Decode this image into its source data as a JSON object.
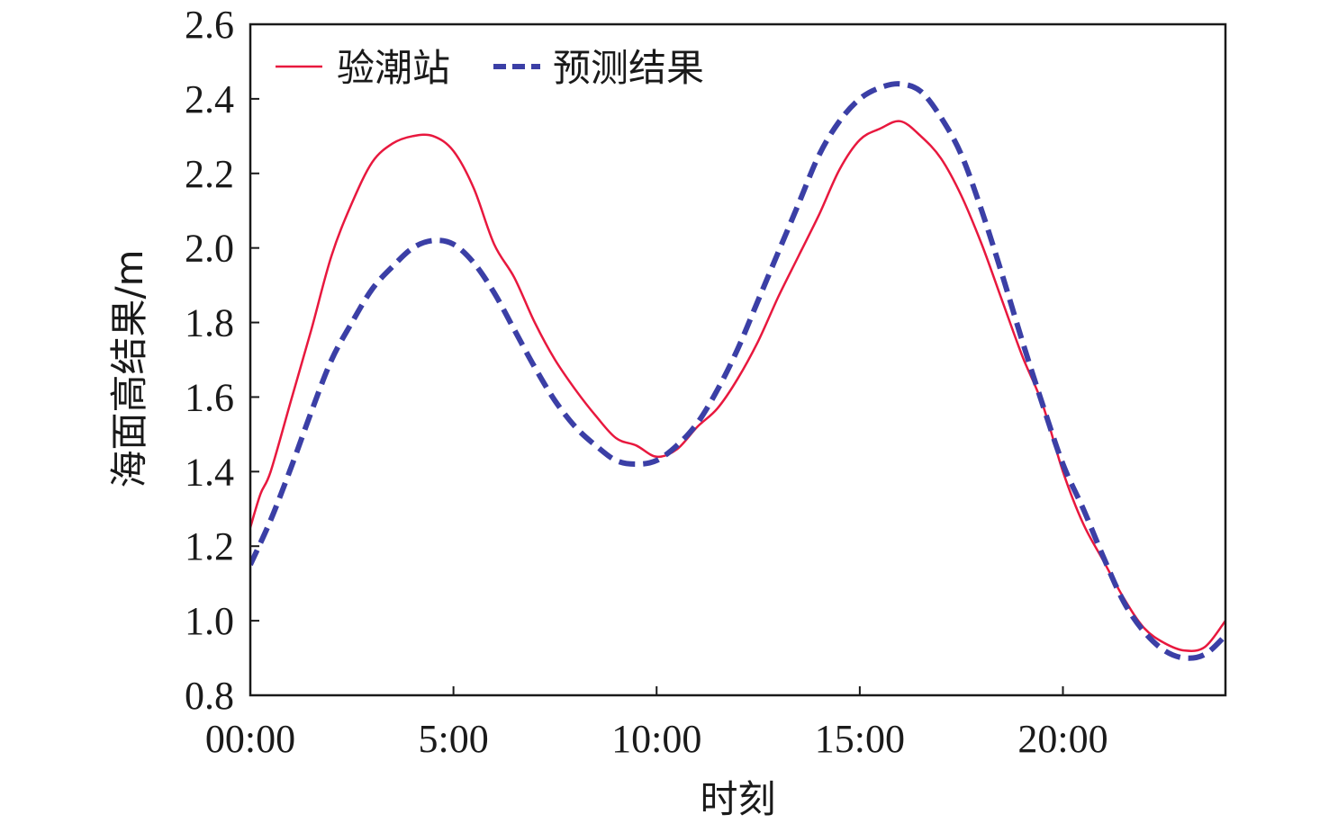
{
  "chart_data": {
    "type": "line",
    "title": "",
    "xlabel": "时刻",
    "ylabel": "海面高结果/m",
    "x_unit": "hours",
    "xlim": [
      0,
      24
    ],
    "ylim": [
      0.8,
      2.6
    ],
    "x_ticks": [
      {
        "value": 0,
        "label": "00:00"
      },
      {
        "value": 5,
        "label": "5:00"
      },
      {
        "value": 10,
        "label": "10:00"
      },
      {
        "value": 15,
        "label": "15:00"
      },
      {
        "value": 20,
        "label": "20:00"
      }
    ],
    "y_ticks": [
      {
        "value": 0.8,
        "label": "0.8"
      },
      {
        "value": 1.0,
        "label": "1.0"
      },
      {
        "value": 1.2,
        "label": "1.2"
      },
      {
        "value": 1.4,
        "label": "1.4"
      },
      {
        "value": 1.6,
        "label": "1.6"
      },
      {
        "value": 1.8,
        "label": "1.8"
      },
      {
        "value": 2.0,
        "label": "2.0"
      },
      {
        "value": 2.2,
        "label": "2.2"
      },
      {
        "value": 2.4,
        "label": "2.4"
      },
      {
        "value": 2.6,
        "label": "2.6"
      }
    ],
    "grid": false,
    "legend_position": "top-left",
    "series": [
      {
        "name": "验潮站",
        "color": "#e8183e",
        "style": "solid",
        "x": [
          0,
          0.25,
          0.5,
          1,
          1.5,
          2,
          2.5,
          3,
          3.5,
          4,
          4.5,
          5,
          5.5,
          6,
          6.5,
          7,
          7.5,
          8,
          8.5,
          9,
          9.5,
          10,
          10.5,
          11,
          11.5,
          12,
          12.5,
          13,
          13.5,
          14,
          14.5,
          15,
          15.5,
          16,
          16.5,
          17,
          17.5,
          18,
          18.5,
          19,
          19.5,
          20,
          20.5,
          21,
          21.5,
          22,
          22.5,
          23,
          23.5,
          24
        ],
        "y": [
          1.25,
          1.34,
          1.4,
          1.59,
          1.78,
          1.98,
          2.12,
          2.23,
          2.28,
          2.3,
          2.3,
          2.26,
          2.16,
          2.01,
          1.92,
          1.8,
          1.7,
          1.62,
          1.55,
          1.49,
          1.47,
          1.44,
          1.46,
          1.52,
          1.57,
          1.65,
          1.75,
          1.87,
          1.98,
          2.09,
          2.21,
          2.29,
          2.32,
          2.34,
          2.3,
          2.24,
          2.14,
          2.01,
          1.86,
          1.71,
          1.58,
          1.4,
          1.26,
          1.16,
          1.06,
          0.98,
          0.94,
          0.92,
          0.93,
          1.0
        ]
      },
      {
        "name": "预测结果",
        "color": "#3b3fa6",
        "style": "dashed",
        "x": [
          0,
          0.5,
          1,
          1.5,
          2,
          2.5,
          3,
          3.5,
          4,
          4.5,
          5,
          5.5,
          6,
          6.5,
          7,
          7.5,
          8,
          8.5,
          9,
          9.5,
          10,
          10.5,
          11,
          11.5,
          12,
          12.5,
          13,
          13.5,
          14,
          14.5,
          15,
          15.5,
          16,
          16.5,
          17,
          17.5,
          18,
          18.5,
          19,
          19.5,
          20,
          20.5,
          21,
          21.5,
          22,
          22.5,
          23,
          23.5,
          24
        ],
        "y": [
          1.15,
          1.27,
          1.41,
          1.56,
          1.7,
          1.8,
          1.89,
          1.95,
          2.0,
          2.02,
          2.01,
          1.96,
          1.88,
          1.78,
          1.68,
          1.59,
          1.52,
          1.47,
          1.43,
          1.42,
          1.43,
          1.47,
          1.53,
          1.62,
          1.73,
          1.86,
          1.99,
          2.12,
          2.25,
          2.34,
          2.4,
          2.43,
          2.44,
          2.42,
          2.35,
          2.25,
          2.1,
          1.93,
          1.75,
          1.58,
          1.42,
          1.3,
          1.17,
          1.05,
          0.97,
          0.92,
          0.9,
          0.91,
          0.96
        ]
      }
    ]
  }
}
